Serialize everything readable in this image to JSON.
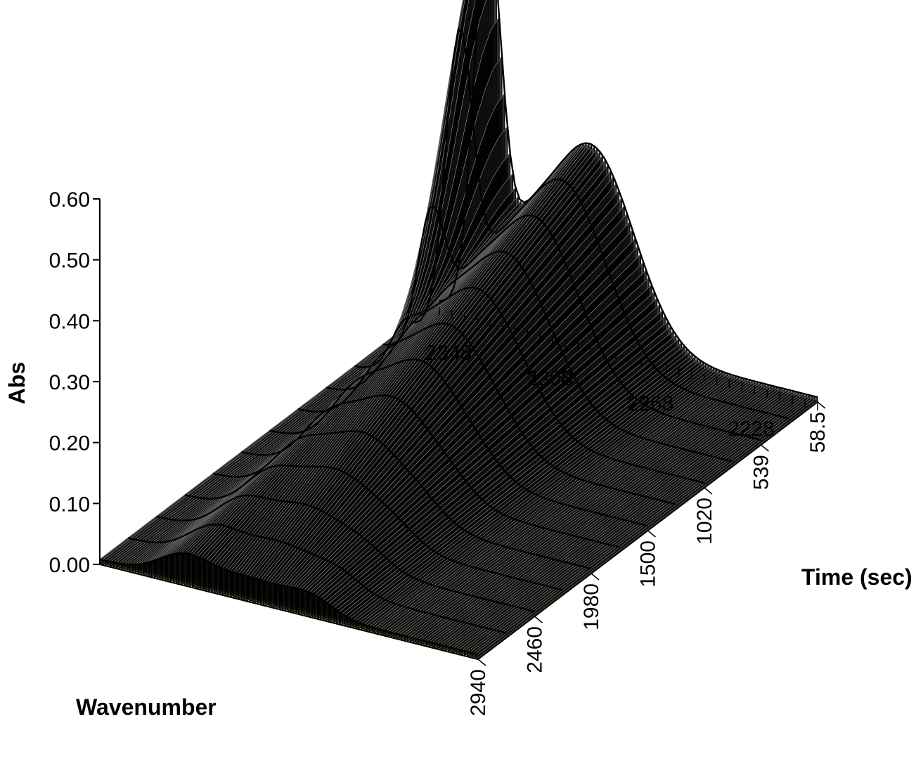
{
  "chart_data": {
    "type": "surface",
    "xlabel": "Wavenumber",
    "ylabel": "Time (sec)",
    "zlabel": "Abs",
    "x_ticks": [
      "2348",
      "2308",
      "2268",
      "2228"
    ],
    "x_range": [
      2360,
      2210
    ],
    "y_ticks": [
      "58.5",
      "539",
      "1020",
      "1500",
      "1980",
      "2460",
      "2940"
    ],
    "y_range": [
      0,
      2940
    ],
    "z_ticks": [
      "0.00",
      "0.10",
      "0.20",
      "0.30",
      "0.40",
      "0.50",
      "0.60"
    ],
    "z_range": [
      0,
      0.6
    ],
    "peaks": [
      {
        "wavenumber": 2340,
        "time_sec": 0,
        "abs": 0.6
      },
      {
        "wavenumber": 2295,
        "time_sec": 0,
        "abs": 0.32
      },
      {
        "wavenumber": 2275,
        "time_sec": 2940,
        "abs": 0.02
      }
    ],
    "surface_color": "#000000",
    "floor_color": "#ffff99"
  }
}
